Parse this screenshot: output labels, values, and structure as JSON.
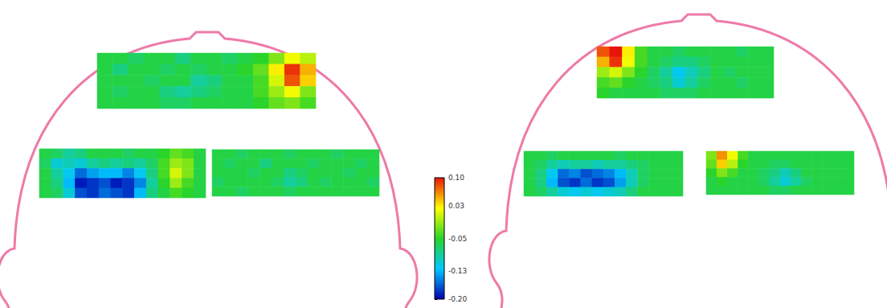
{
  "chart_data": {
    "type": "heatmap",
    "tick_labels": false,
    "colorbar": {
      "range": [
        -0.2,
        0.1
      ],
      "ticks": [
        {
          "value": 0.1,
          "label": "0.10"
        },
        {
          "value": 0.03,
          "label": "0.03"
        },
        {
          "value": -0.05,
          "label": "-0.05"
        },
        {
          "value": -0.13,
          "label": "-0.13"
        },
        {
          "value": -0.2,
          "label": "-0.20"
        }
      ],
      "colors": [
        "#0000b0",
        "#00c8ff",
        "#2ad42a",
        "#ffff00",
        "#e8140a"
      ]
    },
    "maps": [
      {
        "cells": [
          [
            -0.06,
            -0.06,
            -0.07,
            -0.06,
            -0.06,
            -0.08,
            -0.06,
            -0.06,
            -0.07,
            -0.06,
            -0.05,
            -0.02,
            0.02,
            0.0
          ],
          [
            -0.06,
            -0.08,
            -0.06,
            -0.06,
            -0.07,
            -0.06,
            -0.07,
            -0.06,
            -0.06,
            -0.05,
            -0.03,
            0.03,
            0.09,
            0.05
          ],
          [
            -0.06,
            -0.06,
            -0.06,
            -0.07,
            -0.06,
            -0.06,
            -0.09,
            -0.08,
            -0.06,
            -0.06,
            -0.04,
            0.01,
            0.08,
            0.04
          ],
          [
            -0.06,
            -0.07,
            -0.06,
            -0.06,
            -0.08,
            -0.09,
            -0.08,
            -0.07,
            -0.06,
            -0.06,
            -0.04,
            -0.01,
            0.02,
            -0.02
          ],
          [
            -0.06,
            -0.06,
            -0.06,
            -0.06,
            -0.07,
            -0.07,
            -0.06,
            -0.06,
            -0.06,
            -0.06,
            -0.05,
            -0.03,
            -0.02,
            -0.04
          ]
        ]
      },
      {
        "cells": [
          [
            -0.06,
            -0.07,
            -0.09,
            -0.08,
            -0.06,
            -0.06,
            -0.06,
            -0.07,
            -0.06,
            -0.06,
            -0.05,
            -0.03,
            -0.04,
            -0.06
          ],
          [
            -0.07,
            -0.11,
            -0.1,
            -0.11,
            -0.09,
            -0.08,
            -0.09,
            -0.08,
            -0.09,
            -0.07,
            -0.04,
            -0.01,
            -0.02,
            -0.06
          ],
          [
            -0.06,
            -0.09,
            -0.12,
            -0.16,
            -0.14,
            -0.13,
            -0.13,
            -0.15,
            -0.12,
            -0.08,
            -0.04,
            0.01,
            -0.02,
            -0.06
          ],
          [
            -0.06,
            -0.08,
            -0.13,
            -0.19,
            -0.18,
            -0.17,
            -0.19,
            -0.18,
            -0.15,
            -0.09,
            -0.05,
            -0.01,
            -0.04,
            -0.06
          ],
          [
            -0.06,
            -0.07,
            -0.11,
            -0.17,
            -0.18,
            -0.16,
            -0.17,
            -0.18,
            -0.13,
            -0.08,
            -0.06,
            -0.04,
            -0.05,
            -0.06
          ]
        ]
      },
      {
        "cells": [
          [
            -0.06,
            -0.06,
            -0.07,
            -0.06,
            -0.06,
            -0.06,
            -0.07,
            -0.06,
            -0.06,
            -0.06,
            -0.07,
            -0.06,
            -0.06,
            -0.06
          ],
          [
            -0.06,
            -0.07,
            -0.06,
            -0.06,
            -0.08,
            -0.06,
            -0.06,
            -0.06,
            -0.07,
            -0.06,
            -0.06,
            -0.06,
            -0.07,
            -0.06
          ],
          [
            -0.06,
            -0.06,
            -0.06,
            -0.07,
            -0.06,
            -0.06,
            -0.08,
            -0.07,
            -0.06,
            -0.06,
            -0.06,
            -0.07,
            -0.06,
            -0.06
          ],
          [
            -0.07,
            -0.06,
            -0.06,
            -0.06,
            -0.06,
            -0.07,
            -0.09,
            -0.08,
            -0.06,
            -0.07,
            -0.06,
            -0.06,
            -0.06,
            -0.07
          ],
          [
            -0.06,
            -0.06,
            -0.07,
            -0.06,
            -0.06,
            -0.06,
            -0.07,
            -0.06,
            -0.06,
            -0.06,
            -0.06,
            -0.06,
            -0.06,
            -0.06
          ]
        ]
      },
      {
        "cells": [
          [
            0.08,
            0.1,
            0.03,
            -0.04,
            -0.06,
            -0.06,
            -0.07,
            -0.06,
            -0.06,
            -0.06,
            -0.06,
            -0.07,
            -0.06,
            -0.06
          ],
          [
            0.05,
            0.09,
            0.02,
            -0.04,
            -0.06,
            -0.07,
            -0.08,
            -0.08,
            -0.07,
            -0.06,
            -0.06,
            -0.06,
            -0.06,
            -0.06
          ],
          [
            -0.01,
            0.01,
            -0.02,
            -0.05,
            -0.07,
            -0.09,
            -0.12,
            -0.1,
            -0.08,
            -0.06,
            -0.07,
            -0.06,
            -0.06,
            -0.06
          ],
          [
            -0.04,
            -0.03,
            -0.05,
            -0.06,
            -0.07,
            -0.08,
            -0.11,
            -0.09,
            -0.07,
            -0.06,
            -0.06,
            -0.07,
            -0.06,
            -0.06
          ],
          [
            -0.05,
            -0.06,
            -0.06,
            -0.06,
            -0.06,
            -0.07,
            -0.07,
            -0.07,
            -0.06,
            -0.06,
            -0.06,
            -0.06,
            -0.06,
            -0.06
          ]
        ]
      },
      {
        "cells": [
          [
            -0.06,
            -0.06,
            -0.07,
            -0.06,
            -0.06,
            -0.06,
            -0.06,
            -0.06,
            -0.07,
            -0.06,
            -0.06,
            -0.06,
            -0.06,
            -0.06
          ],
          [
            -0.06,
            -0.07,
            -0.09,
            -0.1,
            -0.09,
            -0.09,
            -0.1,
            -0.09,
            -0.09,
            -0.08,
            -0.07,
            -0.06,
            -0.06,
            -0.06
          ],
          [
            -0.06,
            -0.08,
            -0.12,
            -0.16,
            -0.15,
            -0.17,
            -0.16,
            -0.15,
            -0.13,
            -0.1,
            -0.07,
            -0.06,
            -0.06,
            -0.06
          ],
          [
            -0.06,
            -0.08,
            -0.13,
            -0.17,
            -0.18,
            -0.16,
            -0.18,
            -0.17,
            -0.14,
            -0.1,
            -0.07,
            -0.06,
            -0.06,
            -0.06
          ],
          [
            -0.06,
            -0.07,
            -0.09,
            -0.11,
            -0.12,
            -0.11,
            -0.12,
            -0.11,
            -0.1,
            -0.08,
            -0.06,
            -0.06,
            -0.06,
            -0.06
          ]
        ]
      },
      {
        "cells": [
          [
            -0.02,
            0.06,
            0.02,
            -0.04,
            -0.06,
            -0.06,
            -0.06,
            -0.06,
            -0.06,
            -0.06,
            -0.06,
            -0.06,
            -0.06,
            -0.06
          ],
          [
            -0.03,
            0.04,
            0.0,
            -0.05,
            -0.06,
            -0.06,
            -0.07,
            -0.07,
            -0.06,
            -0.06,
            -0.06,
            -0.06,
            -0.06,
            -0.06
          ],
          [
            -0.05,
            -0.02,
            -0.04,
            -0.06,
            -0.06,
            -0.07,
            -0.08,
            -0.1,
            -0.08,
            -0.06,
            -0.06,
            -0.06,
            -0.06,
            -0.06
          ],
          [
            -0.06,
            -0.05,
            -0.06,
            -0.06,
            -0.06,
            -0.07,
            -0.09,
            -0.11,
            -0.09,
            -0.07,
            -0.06,
            -0.06,
            -0.06,
            -0.06
          ],
          [
            -0.06,
            -0.06,
            -0.06,
            -0.06,
            -0.06,
            -0.06,
            -0.07,
            -0.07,
            -0.06,
            -0.06,
            -0.06,
            -0.06,
            -0.06,
            -0.06
          ]
        ]
      }
    ]
  }
}
